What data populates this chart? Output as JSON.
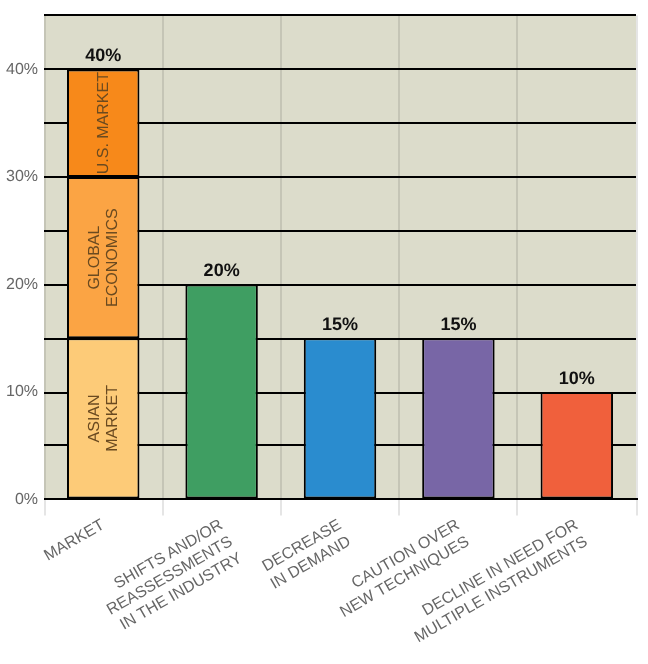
{
  "chart_data": {
    "type": "bar",
    "stacked": true,
    "categories": [
      "MARKET",
      "SHIFTS AND/OR\nREASSESSMENTS\nIN THE INDUSTRY",
      "DECREASE\nIN DEMAND",
      "CAUTION OVER\nNEW TECHNIQUES",
      "DECLINE IN NEED FOR\nMULTIPLE INSTRUMENTS"
    ],
    "series": [
      {
        "name": "ASIAN\nMARKET",
        "color": "#fdcb78",
        "values": [
          15,
          null,
          null,
          null,
          null
        ]
      },
      {
        "name": "GLOBAL\nECONOMICS",
        "color": "#fba444",
        "values": [
          15,
          null,
          null,
          null,
          null
        ]
      },
      {
        "name": "U.S. MARKET",
        "color": "#f7891a",
        "values": [
          10,
          null,
          null,
          null,
          null
        ]
      },
      {
        "colors": [
          null,
          "#3f9e62",
          "#2a8ccf",
          "#7866a6",
          "#f0603c"
        ],
        "values": [
          null,
          20,
          15,
          15,
          10
        ]
      }
    ],
    "totals": [
      "40%",
      "20%",
      "15%",
      "15%",
      "10%"
    ],
    "ylim": [
      0,
      45
    ],
    "yticks": [
      {
        "value": 0,
        "label": "0%"
      },
      {
        "value": 5,
        "label": null
      },
      {
        "value": 10,
        "label": "10%"
      },
      {
        "value": 15,
        "label": null
      },
      {
        "value": 20,
        "label": "20%"
      },
      {
        "value": 25,
        "label": null
      },
      {
        "value": 30,
        "label": "30%"
      },
      {
        "value": 35,
        "label": null
      },
      {
        "value": 40,
        "label": "40%"
      },
      {
        "value": 45,
        "label": null
      }
    ],
    "grid": true,
    "legend": false
  }
}
